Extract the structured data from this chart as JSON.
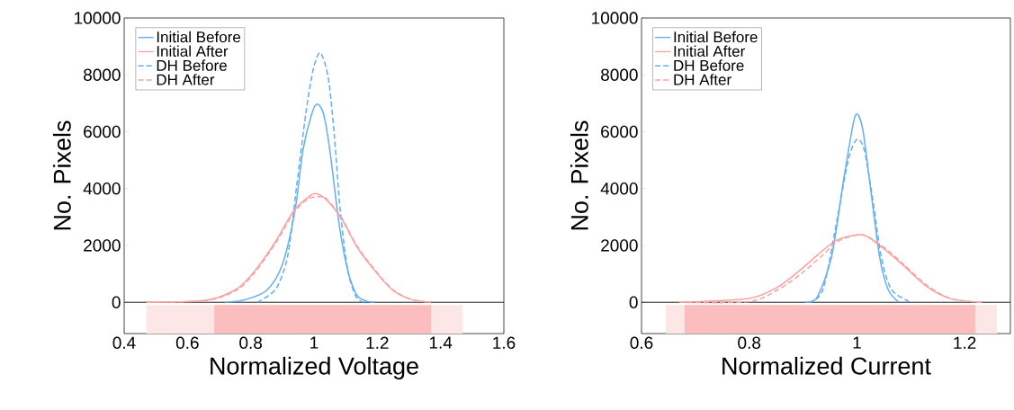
{
  "chart_data": [
    {
      "type": "line",
      "xlabel": "Normalized Voltage",
      "ylabel": "No. Pixels",
      "xlim": [
        0.4,
        1.6
      ],
      "ylim": [
        -1100,
        10000
      ],
      "xticks": [
        0.4,
        0.6,
        0.8,
        1,
        1.2,
        1.4,
        1.6
      ],
      "yticks": [
        0,
        2000,
        4000,
        6000,
        8000,
        10000
      ],
      "grid": false,
      "legend": "top left",
      "series": [
        {
          "name": "Initial Before",
          "color": "#64aef4",
          "line_style": "solid",
          "x": [
            0.72,
            0.78,
            0.85,
            0.9,
            0.94,
            0.965,
            0.993,
            1.01,
            1.03,
            1.05,
            1.08,
            1.107,
            1.135,
            1.164,
            1.19
          ],
          "values": [
            0,
            85,
            420,
            1330,
            3230,
            5350,
            6630,
            6970,
            6630,
            5350,
            2700,
            1110,
            265,
            50,
            0
          ]
        },
        {
          "name": "Initial After",
          "color": "#f9a3a3",
          "line_style": "solid",
          "x": [
            0.48,
            0.66,
            0.756,
            0.813,
            0.88,
            0.936,
            0.983,
            1.007,
            1.04,
            1.088,
            1.135,
            1.192,
            1.249,
            1.306,
            1.368
          ],
          "values": [
            0,
            75,
            480,
            1110,
            2170,
            3230,
            3710,
            3820,
            3600,
            2920,
            1960,
            1110,
            420,
            105,
            0
          ]
        },
        {
          "name": "DH Before",
          "color": "#64aef4",
          "line_style": "dashed",
          "x": [
            0.82,
            0.88,
            0.917,
            0.945,
            0.974,
            0.998,
            1.02,
            1.045,
            1.064,
            1.083,
            1.107,
            1.135,
            1.164
          ],
          "values": [
            0,
            480,
            1640,
            4080,
            6630,
            8220,
            8770,
            7900,
            5890,
            3230,
            1110,
            160,
            0
          ]
        },
        {
          "name": "DH After",
          "color": "#f9a3a3",
          "line_style": "dashed",
          "x": [
            0.47,
            0.66,
            0.756,
            0.813,
            0.88,
            0.936,
            0.983,
            1.02,
            1.04,
            1.088,
            1.135,
            1.192,
            1.249,
            1.306,
            1.368
          ],
          "values": [
            0,
            60,
            430,
            1050,
            2100,
            3150,
            3650,
            3710,
            3640,
            2960,
            2000,
            1150,
            450,
            110,
            0
          ]
        }
      ],
      "ref_lines": [
        {
          "axis": "y",
          "value": 0,
          "color": "#000000"
        }
      ],
      "bands": [
        {
          "axis": "x",
          "from": 0.47,
          "to": 1.47,
          "color": "#fde6e6"
        },
        {
          "axis": "x",
          "from": 0.685,
          "to": 1.37,
          "color": "#fbbdbd"
        }
      ]
    },
    {
      "type": "line",
      "xlabel": "Normalized Current",
      "ylabel": "No. Pixels",
      "xlim": [
        0.6,
        1.285
      ],
      "ylim": [
        -1100,
        10000
      ],
      "xticks": [
        0.6,
        0.8,
        1,
        1.2
      ],
      "yticks": [
        0,
        2000,
        4000,
        6000,
        8000,
        10000
      ],
      "grid": false,
      "legend": "top left",
      "series": [
        {
          "name": "Initial Before",
          "color": "#64aef4",
          "line_style": "solid",
          "x": [
            0.904,
            0.926,
            0.953,
            0.975,
            0.992,
            1.0,
            1.011,
            1.025,
            1.042,
            1.058,
            1.078
          ],
          "values": [
            0,
            180,
            1610,
            4270,
            6180,
            6620,
            6070,
            4050,
            1610,
            450,
            0
          ]
        },
        {
          "name": "Initial After",
          "color": "#f9a3a3",
          "line_style": "solid",
          "x": [
            0.67,
            0.799,
            0.854,
            0.898,
            0.937,
            0.964,
            1.003,
            1.02,
            1.047,
            1.086,
            1.13,
            1.174,
            1.232
          ],
          "values": [
            0,
            130,
            550,
            1190,
            1830,
            2200,
            2380,
            2300,
            1930,
            1300,
            550,
            130,
            0
          ]
        },
        {
          "name": "DH Before",
          "color": "#64aef4",
          "line_style": "dashed",
          "x": [
            0.91,
            0.937,
            0.964,
            0.984,
            1.0,
            1.014,
            1.031,
            1.045,
            1.064,
            1.1
          ],
          "values": [
            0,
            450,
            3000,
            5010,
            5730,
            5330,
            3420,
            1610,
            450,
            0
          ]
        },
        {
          "name": "DH After",
          "color": "#f9a3a3",
          "line_style": "dashed",
          "x": [
            0.67,
            0.799,
            0.854,
            0.898,
            0.937,
            0.964,
            1.009,
            1.047,
            1.086,
            1.13,
            1.174,
            1.23
          ],
          "values": [
            0,
            20,
            450,
            1030,
            1670,
            2140,
            2380,
            1980,
            1350,
            600,
            130,
            0
          ]
        }
      ],
      "ref_lines": [
        {
          "axis": "y",
          "value": 0,
          "color": "#000000"
        }
      ],
      "bands": [
        {
          "axis": "x",
          "from": 0.645,
          "to": 1.26,
          "color": "#fde6e6"
        },
        {
          "axis": "x",
          "from": 0.68,
          "to": 1.22,
          "color": "#fbbdbd"
        }
      ]
    }
  ]
}
